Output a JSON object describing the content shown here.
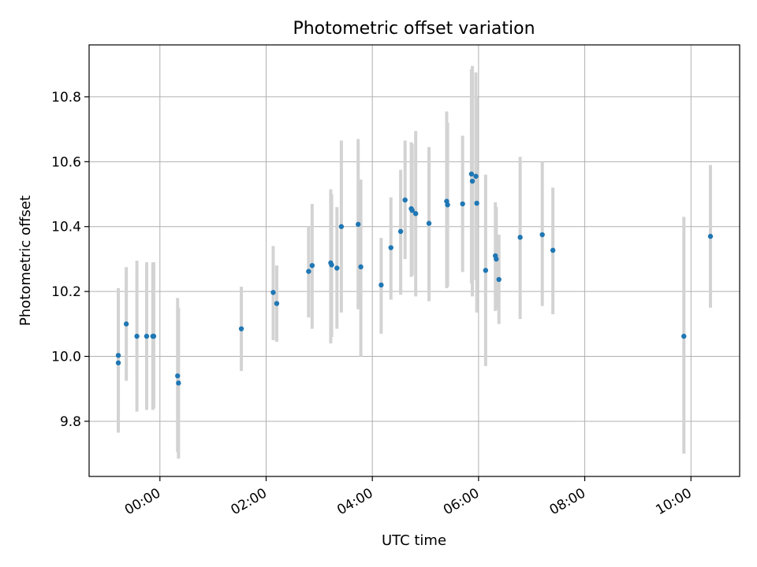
{
  "chart_data": {
    "type": "scatter",
    "title": "Photometric offset variation",
    "xlabel": "UTC time",
    "ylabel": "Photometric offset",
    "x_unit": "UTC time (HH:MM)",
    "xlim": [
      "-01:20",
      "10:55"
    ],
    "ylim": [
      9.63,
      10.96
    ],
    "xticks": [
      "00:00",
      "02:00",
      "04:00",
      "06:00",
      "08:00",
      "10:00"
    ],
    "yticks": [
      "9.8",
      "10.0",
      "10.2",
      "10.4",
      "10.6",
      "10.8"
    ],
    "grid": true,
    "legend": false,
    "colors": {
      "point": "#1f77b4",
      "errorbar": "#d3d3d3",
      "grid": "#b0b0b0"
    },
    "points": [
      {
        "x": "-00:47",
        "y": 10.003,
        "ylo": 9.78,
        "yhi": 10.21
      },
      {
        "x": "-00:47",
        "y": 9.98,
        "ylo": 9.765,
        "yhi": 10.2
      },
      {
        "x": "-00:38",
        "y": 10.1,
        "ylo": 9.925,
        "yhi": 10.275
      },
      {
        "x": "-00:26",
        "y": 10.062,
        "ylo": 9.83,
        "yhi": 10.295
      },
      {
        "x": "-00:15",
        "y": 10.062,
        "ylo": 9.835,
        "yhi": 10.29
      },
      {
        "x": "-00:08",
        "y": 10.062,
        "ylo": 9.835,
        "yhi": 10.29
      },
      {
        "x": "-00:07",
        "y": 10.062,
        "ylo": 9.84,
        "yhi": 10.29
      },
      {
        "x": "00:20",
        "y": 9.94,
        "ylo": 9.705,
        "yhi": 10.18
      },
      {
        "x": "00:21",
        "y": 9.918,
        "ylo": 9.685,
        "yhi": 10.15
      },
      {
        "x": "01:32",
        "y": 10.085,
        "ylo": 9.955,
        "yhi": 10.215
      },
      {
        "x": "02:08",
        "y": 10.197,
        "ylo": 10.05,
        "yhi": 10.34
      },
      {
        "x": "02:12",
        "y": 10.163,
        "ylo": 10.045,
        "yhi": 10.28
      },
      {
        "x": "02:48",
        "y": 10.262,
        "ylo": 10.12,
        "yhi": 10.4
      },
      {
        "x": "02:52",
        "y": 10.28,
        "ylo": 10.085,
        "yhi": 10.47
      },
      {
        "x": "03:13",
        "y": 10.288,
        "ylo": 10.04,
        "yhi": 10.515
      },
      {
        "x": "03:14",
        "y": 10.282,
        "ylo": 10.06,
        "yhi": 10.5
      },
      {
        "x": "03:20",
        "y": 10.272,
        "ylo": 10.085,
        "yhi": 10.46
      },
      {
        "x": "03:25",
        "y": 10.4,
        "ylo": 10.135,
        "yhi": 10.665
      },
      {
        "x": "03:44",
        "y": 10.407,
        "ylo": 10.145,
        "yhi": 10.67
      },
      {
        "x": "03:47",
        "y": 10.276,
        "ylo": 10.0,
        "yhi": 10.545
      },
      {
        "x": "04:10",
        "y": 10.22,
        "ylo": 10.07,
        "yhi": 10.365
      },
      {
        "x": "04:21",
        "y": 10.335,
        "ylo": 10.175,
        "yhi": 10.49
      },
      {
        "x": "04:32",
        "y": 10.385,
        "ylo": 10.19,
        "yhi": 10.575
      },
      {
        "x": "04:37",
        "y": 10.482,
        "ylo": 10.3,
        "yhi": 10.665
      },
      {
        "x": "04:44",
        "y": 10.455,
        "ylo": 10.245,
        "yhi": 10.66
      },
      {
        "x": "04:45",
        "y": 10.45,
        "ylo": 10.25,
        "yhi": 10.655
      },
      {
        "x": "04:49",
        "y": 10.44,
        "ylo": 10.185,
        "yhi": 10.695
      },
      {
        "x": "05:04",
        "y": 10.41,
        "ylo": 10.17,
        "yhi": 10.645
      },
      {
        "x": "05:24",
        "y": 10.478,
        "ylo": 10.21,
        "yhi": 10.755
      },
      {
        "x": "05:25",
        "y": 10.467,
        "ylo": 10.215,
        "yhi": 10.72
      },
      {
        "x": "05:42",
        "y": 10.47,
        "ylo": 10.26,
        "yhi": 10.68
      },
      {
        "x": "05:52",
        "y": 10.562,
        "ylo": 10.225,
        "yhi": 10.885
      },
      {
        "x": "05:53",
        "y": 10.54,
        "ylo": 10.185,
        "yhi": 10.895
      },
      {
        "x": "05:57",
        "y": 10.555,
        "ylo": 10.235,
        "yhi": 10.875
      },
      {
        "x": "05:58",
        "y": 10.472,
        "ylo": 10.135,
        "yhi": 10.8
      },
      {
        "x": "06:08",
        "y": 10.265,
        "ylo": 9.97,
        "yhi": 10.56
      },
      {
        "x": "06:19",
        "y": 10.31,
        "ylo": 10.14,
        "yhi": 10.475
      },
      {
        "x": "06:20",
        "y": 10.3,
        "ylo": 10.145,
        "yhi": 10.46
      },
      {
        "x": "06:23",
        "y": 10.237,
        "ylo": 10.1,
        "yhi": 10.375
      },
      {
        "x": "06:47",
        "y": 10.367,
        "ylo": 10.115,
        "yhi": 10.615
      },
      {
        "x": "07:12",
        "y": 10.375,
        "ylo": 10.155,
        "yhi": 10.6
      },
      {
        "x": "07:24",
        "y": 10.327,
        "ylo": 10.13,
        "yhi": 10.52
      },
      {
        "x": "09:52",
        "y": 10.062,
        "ylo": 9.7,
        "yhi": 10.43
      },
      {
        "x": "10:22",
        "y": 10.37,
        "ylo": 10.15,
        "yhi": 10.59
      }
    ]
  }
}
